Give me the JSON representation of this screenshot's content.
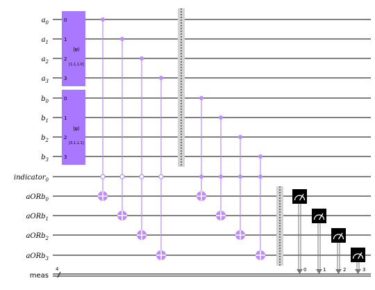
{
  "registers": {
    "quantum": [
      {
        "name": "a",
        "sub": "0"
      },
      {
        "name": "a",
        "sub": "1"
      },
      {
        "name": "a",
        "sub": "2"
      },
      {
        "name": "a",
        "sub": "3"
      },
      {
        "name": "b",
        "sub": "0"
      },
      {
        "name": "b",
        "sub": "1"
      },
      {
        "name": "b",
        "sub": "2"
      },
      {
        "name": "b",
        "sub": "3"
      },
      {
        "name": "indicator",
        "sub": "0"
      },
      {
        "name": "aORb",
        "sub": "0"
      },
      {
        "name": "aORb",
        "sub": "1"
      },
      {
        "name": "aORb",
        "sub": "2"
      },
      {
        "name": "aORb",
        "sub": "3"
      }
    ],
    "classical": {
      "name": "meas",
      "width": "4"
    }
  },
  "gates": {
    "init_a": {
      "label": "|ψ⟩",
      "params": "[1,1,1,0]",
      "qubit_labels": [
        "0",
        "1",
        "2",
        "3"
      ]
    },
    "init_b": {
      "label": "|ψ⟩",
      "params": "[0,1,1,1]",
      "qubit_labels": [
        "0",
        "1",
        "2",
        "3"
      ]
    },
    "measure_bits": [
      "0",
      "1",
      "2",
      "3"
    ]
  },
  "colors": {
    "gate_fill": "#a879ff",
    "control": "#bb8bff",
    "barrier": "#d3d3d3",
    "measure": "#000000",
    "wire": "#000000"
  }
}
